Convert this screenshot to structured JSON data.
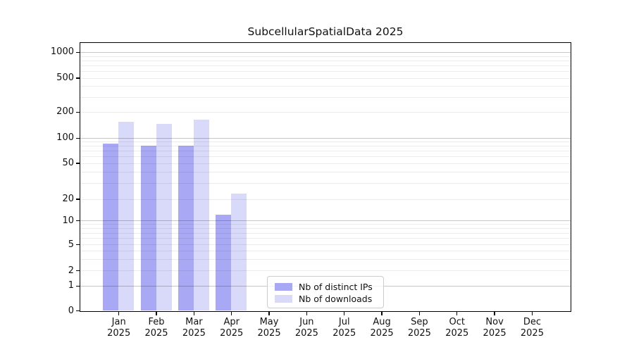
{
  "figure": {
    "background": "#ffffff"
  },
  "chart_data": {
    "type": "bar",
    "title": "SubcellularSpatialData 2025",
    "categories": [
      "Jan",
      "Feb",
      "Mar",
      "Apr",
      "May",
      "Jun",
      "Jul",
      "Aug",
      "Sep",
      "Oct",
      "Nov",
      "Dec"
    ],
    "year_label": "2025",
    "series": [
      {
        "name": "Nb of distinct IPs",
        "color": "#a8a8f4",
        "values": [
          85,
          80,
          80,
          12,
          0,
          0,
          0,
          0,
          0,
          0,
          0,
          0
        ]
      },
      {
        "name": "Nb of downloads",
        "color": "#d9daf9",
        "values": [
          155,
          145,
          163,
          23,
          0,
          0,
          0,
          0,
          0,
          0,
          0,
          0
        ]
      }
    ],
    "xlabel": "",
    "ylabel": "",
    "y_scale": "symlog",
    "y_ticks": [
      0,
      1,
      2,
      5,
      10,
      20,
      50,
      100,
      200,
      500,
      1000
    ],
    "y_major_grid": [
      1,
      10,
      100,
      1000
    ],
    "y_minor_grid": [
      2,
      3,
      4,
      5,
      6,
      7,
      8,
      9,
      20,
      30,
      40,
      50,
      60,
      70,
      80,
      90,
      200,
      300,
      400,
      500,
      600,
      700,
      800,
      900
    ],
    "ylim": [
      0,
      1200
    ],
    "grid": true,
    "legend_position": "inside lower-center",
    "text_color": "#111111",
    "spine_color": "#000000"
  }
}
